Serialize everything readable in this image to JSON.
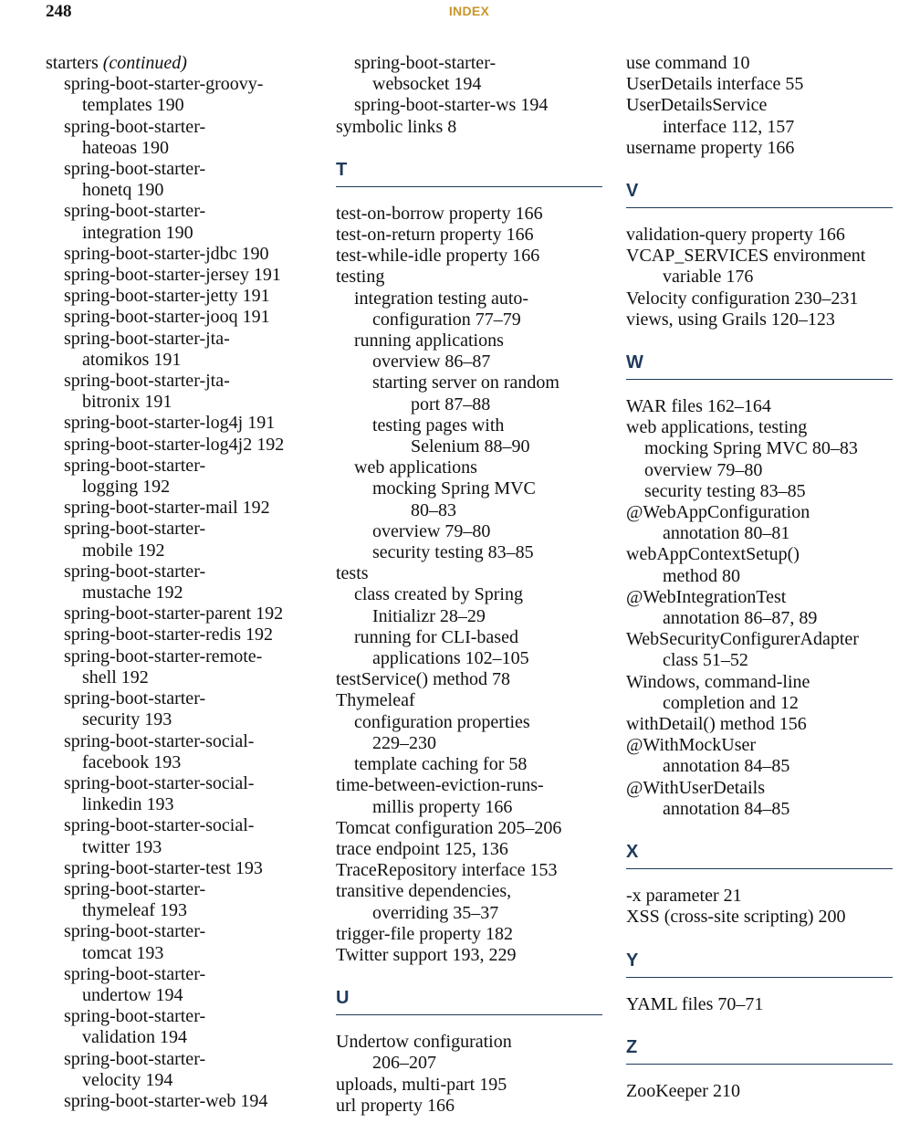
{
  "header": {
    "page_number": "248",
    "running_head": "INDEX"
  },
  "col1": {
    "starters_term": "starters",
    "starters_note": "(continued)",
    "lines": [
      [
        "spring-boot-starter-groovy-",
        "templates  190"
      ],
      [
        "spring-boot-starter-",
        "hateoas  190"
      ],
      [
        "spring-boot-starter-",
        "honetq  190"
      ],
      [
        "spring-boot-starter-",
        "integration  190"
      ],
      [
        "spring-boot-starter-jdbc  190"
      ],
      [
        "spring-boot-starter-jersey  191"
      ],
      [
        "spring-boot-starter-jetty  191"
      ],
      [
        "spring-boot-starter-jooq  191"
      ],
      [
        "spring-boot-starter-jta-",
        "atomikos  191"
      ],
      [
        "spring-boot-starter-jta-",
        "bitronix  191"
      ],
      [
        "spring-boot-starter-log4j  191"
      ],
      [
        "spring-boot-starter-log4j2  192"
      ],
      [
        "spring-boot-starter-",
        "logging  192"
      ],
      [
        "spring-boot-starter-mail  192"
      ],
      [
        "spring-boot-starter-",
        "mobile  192"
      ],
      [
        "spring-boot-starter-",
        "mustache  192"
      ],
      [
        "spring-boot-starter-parent  192"
      ],
      [
        "spring-boot-starter-redis  192"
      ],
      [
        "spring-boot-starter-remote-",
        "shell  192"
      ],
      [
        "spring-boot-starter-",
        "security  193"
      ],
      [
        "spring-boot-starter-social-",
        "facebook  193"
      ],
      [
        "spring-boot-starter-social-",
        "linkedin  193"
      ],
      [
        "spring-boot-starter-social-",
        "twitter  193"
      ],
      [
        "spring-boot-starter-test  193"
      ],
      [
        "spring-boot-starter-",
        "thymeleaf  193"
      ],
      [
        "spring-boot-starter-",
        "tomcat  193"
      ],
      [
        "spring-boot-starter-",
        "undertow  194"
      ],
      [
        "spring-boot-starter-",
        "validation  194"
      ],
      [
        "spring-boot-starter-",
        "velocity  194"
      ],
      [
        "spring-boot-starter-web  194"
      ]
    ]
  },
  "col2": {
    "top": [
      {
        "level": 1,
        "text": "spring-boot-starter-"
      },
      {
        "level": "c1",
        "text": "websocket  194"
      },
      {
        "level": 1,
        "text": "spring-boot-starter-ws  194"
      },
      {
        "level": 0,
        "text": "symbolic links  8"
      }
    ],
    "section_t": "T",
    "t_entries": [
      {
        "level": 0,
        "text": "test-on-borrow property  166"
      },
      {
        "level": 0,
        "text": "test-on-return property  166"
      },
      {
        "level": 0,
        "text": "test-while-idle property  166"
      },
      {
        "level": 0,
        "text": "testing"
      },
      {
        "level": 1,
        "text": "integration testing auto-"
      },
      {
        "level": "c1",
        "text": "configuration  77–79"
      },
      {
        "level": 1,
        "text": "running applications"
      },
      {
        "level": 2,
        "text": "overview  86–87"
      },
      {
        "level": 2,
        "text": "starting server on random"
      },
      {
        "level": "c2",
        "text": "port  87–88"
      },
      {
        "level": 2,
        "text": "testing pages with"
      },
      {
        "level": "c2",
        "text": "Selenium  88–90"
      },
      {
        "level": 1,
        "text": "web applications"
      },
      {
        "level": 2,
        "text": "mocking Spring MVC"
      },
      {
        "level": "c2",
        "text": "80–83"
      },
      {
        "level": 2,
        "text": "overview  79–80"
      },
      {
        "level": 2,
        "text": "security testing  83–85"
      },
      {
        "level": 0,
        "text": "tests"
      },
      {
        "level": 1,
        "text": "class created by Spring"
      },
      {
        "level": "c1",
        "text": "Initializr  28–29"
      },
      {
        "level": 1,
        "text": "running for CLI-based"
      },
      {
        "level": "c1",
        "text": "applications  102–105"
      },
      {
        "level": 0,
        "text": "testService() method  78"
      },
      {
        "level": 0,
        "text": "Thymeleaf"
      },
      {
        "level": 1,
        "text": "configuration properties"
      },
      {
        "level": "c1",
        "text": "229–230"
      },
      {
        "level": 1,
        "text": "template caching for  58"
      },
      {
        "level": 0,
        "text": "time-between-eviction-runs-"
      },
      {
        "level": "c0",
        "text": "millis property  166"
      },
      {
        "level": 0,
        "text": "Tomcat configuration  205–206"
      },
      {
        "level": 0,
        "text": "trace endpoint  125, 136"
      },
      {
        "level": 0,
        "text": "TraceRepository interface  153"
      },
      {
        "level": 0,
        "text": "transitive dependencies,"
      },
      {
        "level": "c0",
        "text": "overriding  35–37"
      },
      {
        "level": 0,
        "text": "trigger-file property  182"
      },
      {
        "level": 0,
        "text": "Twitter support  193, 229"
      }
    ],
    "section_u": "U",
    "u_entries": [
      {
        "level": 0,
        "text": "Undertow configuration"
      },
      {
        "level": "c0",
        "text": "206–207"
      },
      {
        "level": 0,
        "text": "uploads, multi-part  195"
      },
      {
        "level": 0,
        "text": "url property  166"
      }
    ]
  },
  "col3": {
    "top": [
      {
        "level": 0,
        "text": "use command  10"
      },
      {
        "level": 0,
        "text": "UserDetails interface  55"
      },
      {
        "level": 0,
        "text": "UserDetailsService"
      },
      {
        "level": "c0",
        "text": "interface  112, 157"
      },
      {
        "level": 0,
        "text": "username property  166"
      }
    ],
    "section_v": "V",
    "v_entries": [
      {
        "level": 0,
        "text": "validation-query property  166"
      },
      {
        "level": 0,
        "text": "VCAP_SERVICES environment"
      },
      {
        "level": "c0",
        "text": "variable  176"
      },
      {
        "level": 0,
        "text": "Velocity configuration  230–231"
      },
      {
        "level": 0,
        "text": "views, using Grails  120–123"
      }
    ],
    "section_w": "W",
    "w_entries": [
      {
        "level": 0,
        "text": "WAR files  162–164"
      },
      {
        "level": 0,
        "text": "web applications, testing"
      },
      {
        "level": 1,
        "text": "mocking Spring MVC  80–83"
      },
      {
        "level": 1,
        "text": "overview  79–80"
      },
      {
        "level": 1,
        "text": "security testing  83–85"
      },
      {
        "level": 0,
        "text": "@WebAppConfiguration"
      },
      {
        "level": "c0",
        "text": "annotation  80–81"
      },
      {
        "level": 0,
        "text": "webAppContextSetup()"
      },
      {
        "level": "c0",
        "text": "method  80"
      },
      {
        "level": 0,
        "text": "@WebIntegrationTest"
      },
      {
        "level": "c0",
        "text": "annotation  86–87, 89"
      },
      {
        "level": 0,
        "text": "WebSecurityConfigurerAdapter"
      },
      {
        "level": "c0",
        "text": "class  51–52"
      },
      {
        "level": 0,
        "text": "Windows, command-line"
      },
      {
        "level": "c0",
        "text": "completion and  12"
      },
      {
        "level": 0,
        "text": "withDetail() method  156"
      },
      {
        "level": 0,
        "text": "@WithMockUser"
      },
      {
        "level": "c0",
        "text": "annotation  84–85"
      },
      {
        "level": 0,
        "text": "@WithUserDetails"
      },
      {
        "level": "c0",
        "text": "annotation  84–85"
      }
    ],
    "section_x": "X",
    "x_entries": [
      {
        "level": 0,
        "text": "-x parameter  21"
      },
      {
        "level": 0,
        "text": "XSS (cross-site scripting)  200"
      }
    ],
    "section_y": "Y",
    "y_entries": [
      {
        "level": 0,
        "text": "YAML files  70–71"
      }
    ],
    "section_z": "Z",
    "z_entries": [
      {
        "level": 0,
        "text": "ZooKeeper  210"
      }
    ]
  },
  "colors": {
    "section_heading": "#1f3a5c",
    "running_head": "#c8962a",
    "text": "#111111"
  }
}
